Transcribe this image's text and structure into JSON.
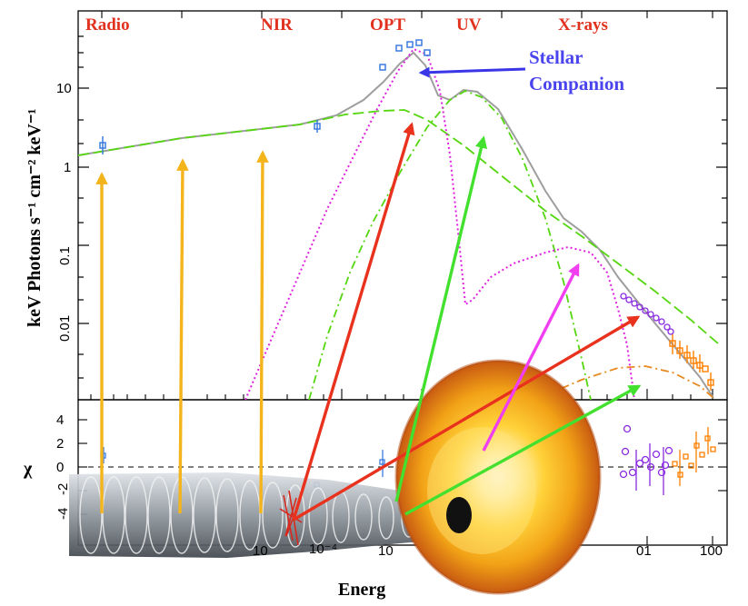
{
  "chart_data": {
    "type": "scatter",
    "band_labels": [
      "Radio",
      "NIR",
      "OPT",
      "UV",
      "X-rays"
    ],
    "annotation": [
      "Stellar",
      "Companion"
    ],
    "ylabel_top": "keV Photons s⁻¹ cm⁻² keV⁻¹",
    "ylabel_bottom": "χ",
    "xlabel": "Energ",
    "x_scale": "log",
    "y_scale": "log",
    "ytick_labels_top": [
      "10",
      "1",
      "0.1",
      "0.01"
    ],
    "ytick_labels_bottom": [
      "4",
      "2",
      "0",
      "-2",
      "-4"
    ],
    "xtick_labels": [
      "10",
      "10⁻⁴",
      "10",
      "01",
      "100"
    ],
    "colors": {
      "band_label": "#e0321e",
      "total_model": "#9e9e9e",
      "companion_model": "#e020e0",
      "jet_model": "#55d60f",
      "disk_model": "#55d60f",
      "reflection_model": "#e8871e",
      "data_ir_opt": "#3b7be0",
      "data_xrt": "#8a2be2",
      "data_bat": "#ff7f00",
      "arrow_radio": "#f4b41b",
      "arrow_opt": "#e8321e",
      "arrow_uv": "#44e030",
      "arrow_soft": "#f03ef0"
    },
    "series": [
      {
        "name": "",
        "color": "#3b7be0",
        "x": [
          -7.9,
          -5.0,
          -3.45,
          -3.32,
          -3.25,
          -3.18,
          -3.12
        ],
        "y": [
          1.8,
          3.2,
          18,
          30,
          33,
          35,
          28
        ]
      },
      {
        "name": "",
        "color": "#8a2be2",
        "x": [
          0.55,
          0.6,
          0.65,
          0.7,
          0.75,
          0.8,
          0.85,
          0.9,
          1.0,
          1.1,
          1.2,
          1.3
        ],
        "y": [
          0.022,
          0.021,
          0.019,
          0.017,
          0.016,
          0.015,
          0.014,
          0.012,
          0.011,
          0.0095,
          0.0085,
          0.0075
        ]
      },
      {
        "name": "",
        "color": "#ff7f00",
        "x": [
          1.35,
          1.42,
          1.5,
          1.58,
          1.65,
          1.72,
          1.8,
          1.88,
          1.95,
          2.0
        ],
        "y": [
          0.0055,
          0.0048,
          0.0042,
          0.0036,
          0.003,
          0.0026,
          0.0022,
          0.0018,
          0.0015,
          0.0012
        ]
      }
    ],
    "ylim": [
      0.0003,
      60
    ]
  }
}
